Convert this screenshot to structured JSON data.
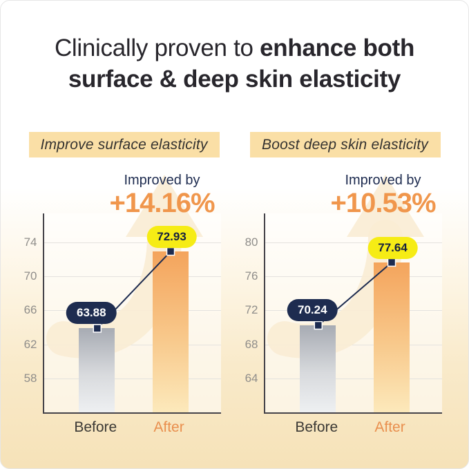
{
  "title": {
    "regular": "Clinically proven to ",
    "bold_line1": "enhance both",
    "bold_line2": "surface & deep skin elasticity"
  },
  "colors": {
    "accent_orange": "#F0964C",
    "navy": "#1D2B4F",
    "pill_yellow": "#F6EC15",
    "header_bg": "#FADFA6",
    "bar_before_top": "#A7ABB3",
    "bar_before_bottom": "#EEF0F2",
    "bar_after_top": "#F4A45C",
    "bar_after_bottom": "#FCE9BB",
    "background_bottom": "#F6E2B8",
    "arrow_watermark": "#F9ECD4"
  },
  "chart_data": [
    {
      "type": "bar",
      "title": "Improve surface elasticity",
      "annotation": {
        "label": "Improved by",
        "percent": "+14.16%"
      },
      "categories": [
        "Before",
        "After"
      ],
      "values": [
        63.88,
        72.93
      ],
      "value_labels": [
        "63.88",
        "72.93"
      ],
      "yticks": [
        58,
        62,
        66,
        70,
        74
      ],
      "ylim": [
        54,
        77.4
      ],
      "grid": true,
      "legend": "none"
    },
    {
      "type": "bar",
      "title": "Boost deep skin elasticity",
      "annotation": {
        "label": "Improved by",
        "percent": "+10.53%"
      },
      "categories": [
        "Before",
        "After"
      ],
      "values": [
        70.24,
        77.64
      ],
      "value_labels": [
        "70.24",
        "77.64"
      ],
      "yticks": [
        64,
        68,
        72,
        76,
        80
      ],
      "ylim": [
        60,
        83.4
      ],
      "grid": true,
      "legend": "none"
    }
  ]
}
